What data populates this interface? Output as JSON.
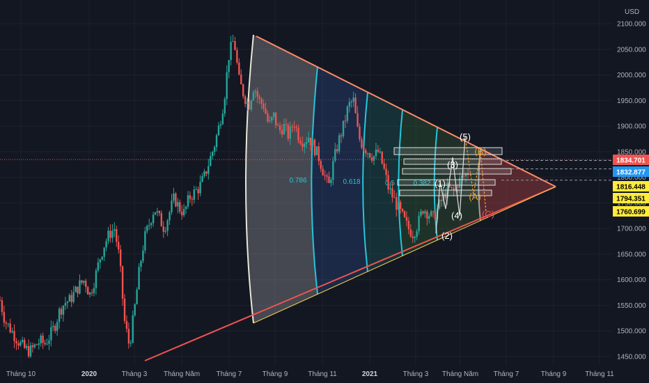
{
  "currency": "USD",
  "colors": {
    "background": "#131722",
    "grid": "#1e222d",
    "up": "#26a69a",
    "down": "#ef5350",
    "fan_outline": "#ef5350",
    "arc": "#26c6da"
  },
  "chart_data": {
    "type": "candlestick",
    "y_axis": {
      "range": [
        1440,
        2110
      ],
      "ticks": [
        "2100.000",
        "2050.000",
        "2000.000",
        "1950.000",
        "1900.000",
        "1850.000",
        "1800.000",
        "1750.000",
        "1700.000",
        "1650.000",
        "1600.000",
        "1550.000",
        "1500.000",
        "1450.000"
      ]
    },
    "x_axis": {
      "ticks": [
        {
          "label": "Tháng 10",
          "strong": false
        },
        {
          "label": "2020",
          "strong": true
        },
        {
          "label": "Tháng 3",
          "strong": false
        },
        {
          "label": "Tháng Năm",
          "strong": false
        },
        {
          "label": "Tháng 7",
          "strong": false
        },
        {
          "label": "Tháng 9",
          "strong": false
        },
        {
          "label": "Tháng 11",
          "strong": false
        },
        {
          "label": "2021",
          "strong": true
        },
        {
          "label": "Tháng 3",
          "strong": false
        },
        {
          "label": "Tháng Năm",
          "strong": false
        },
        {
          "label": "Tháng 7",
          "strong": false
        },
        {
          "label": "Tháng 9",
          "strong": false
        },
        {
          "label": "Tháng 11",
          "strong": false
        }
      ]
    },
    "price_path": [
      1560,
      1520,
      1505,
      1490,
      1475,
      1465,
      1460,
      1470,
      1480,
      1475,
      1490,
      1510,
      1540,
      1555,
      1560,
      1575,
      1590,
      1600,
      1570,
      1600,
      1640,
      1670,
      1690,
      1700,
      1640,
      1520,
      1470,
      1540,
      1620,
      1680,
      1710,
      1740,
      1720,
      1700,
      1730,
      1760,
      1740,
      1730,
      1760,
      1770,
      1780,
      1800,
      1830,
      1860,
      1900,
      1950,
      2040,
      2070,
      1990,
      1960,
      1940,
      1980,
      1950,
      1940,
      1900,
      1920,
      1890,
      1900,
      1880,
      1910,
      1880,
      1870,
      1880,
      1860,
      1840,
      1810,
      1780,
      1830,
      1870,
      1900,
      1940,
      1950,
      1880,
      1860,
      1850,
      1840,
      1850,
      1820,
      1780,
      1760,
      1740,
      1720,
      1700,
      1690,
      1710,
      1740,
      1730,
      1720,
      1740,
      1760,
      1780,
      1770,
      1790,
      1800,
      1810
    ],
    "price_labels": [
      {
        "value": 1834.701,
        "label": "1834.701",
        "bg": "#ef5350",
        "fg": "#ffffff"
      },
      {
        "value": 1832.877,
        "label": "1832.877",
        "bg": "#2196f3",
        "fg": "#ffffff"
      },
      {
        "value": 1816.448,
        "label": "1816.448",
        "bg": "#ffeb3b",
        "fg": "#000000"
      },
      {
        "value": 1794.351,
        "label": "1794.351",
        "bg": "#ffeb3b",
        "fg": "#000000"
      },
      {
        "value": 1760.699,
        "label": "1760.699",
        "bg": "#ffeb3b",
        "fg": "#000000"
      }
    ],
    "fib_levels": [
      {
        "level": "0.786",
        "color": "#26c6da"
      },
      {
        "level": "0.618",
        "color": "#26c6da"
      },
      {
        "level": "0.5",
        "color": "#26c6da"
      },
      {
        "level": "0.382",
        "color": "#26c6da"
      }
    ],
    "wave_labels": [
      {
        "label": "(5)",
        "style": "white"
      },
      {
        "label": "(3)",
        "style": "white"
      },
      {
        "label": "(1)",
        "style": "white"
      },
      {
        "label": "(4)",
        "style": "white"
      },
      {
        "label": "(2)",
        "style": "white"
      },
      {
        "label": "(B)",
        "style": "orange"
      },
      {
        "label": "(A)",
        "style": "orange"
      },
      {
        "label": "(C)",
        "style": "red"
      }
    ]
  }
}
